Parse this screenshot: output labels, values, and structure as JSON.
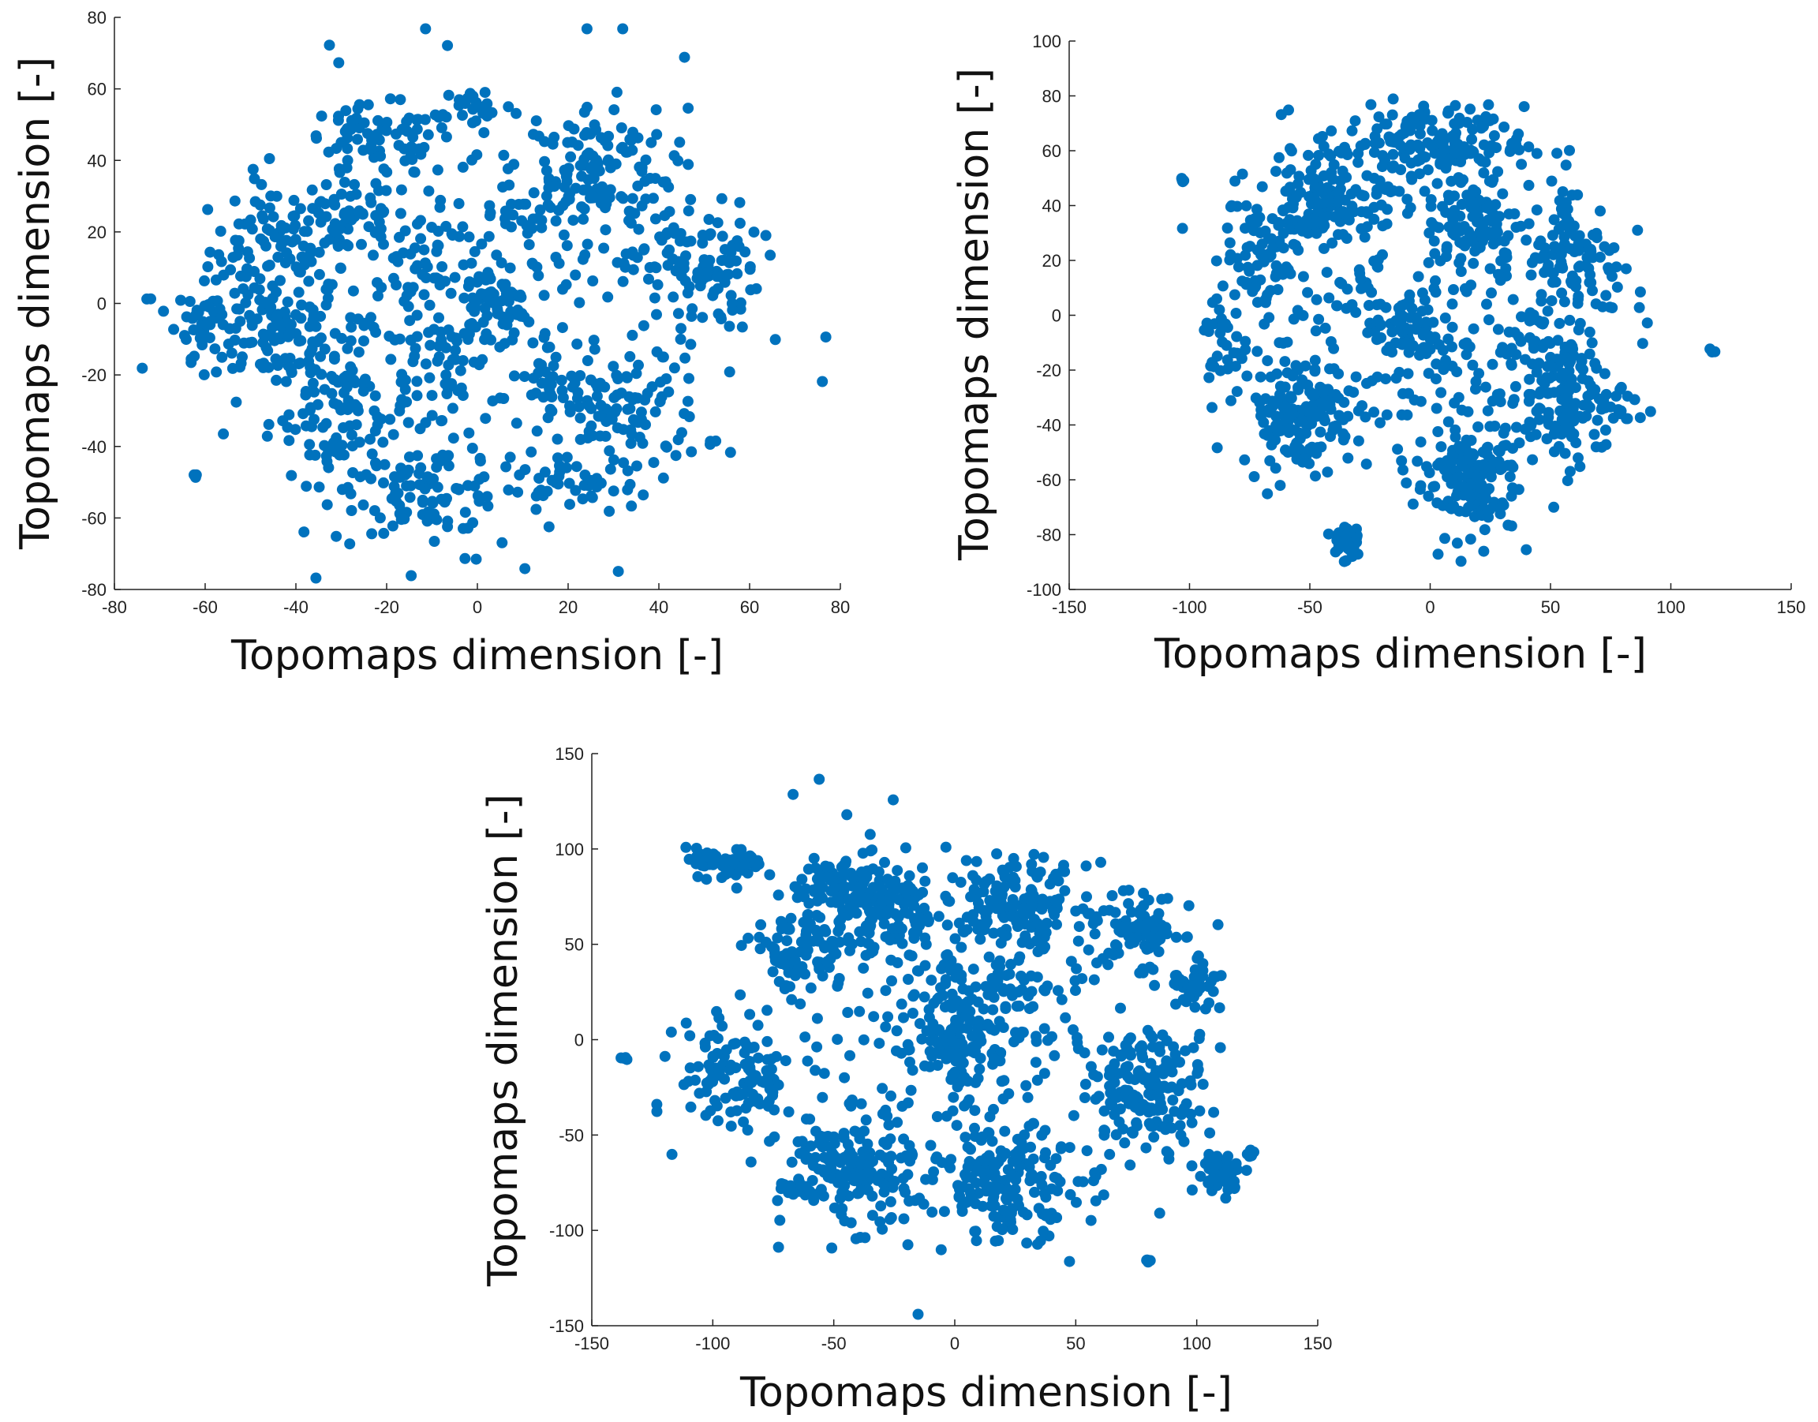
{
  "figure": {
    "panels": 3,
    "marker_color": "#0072BD"
  },
  "chart_data": [
    {
      "type": "scatter",
      "title": "",
      "xlabel": "Topomaps dimension [-]",
      "ylabel": "Topomaps dimension [-]",
      "xlim": [
        -80,
        80
      ],
      "ylim": [
        -80,
        80
      ],
      "xticks": [
        -80,
        -60,
        -40,
        -20,
        0,
        20,
        40,
        60,
        80
      ],
      "yticks": [
        -80,
        -60,
        -40,
        -20,
        0,
        20,
        40,
        60,
        80
      ],
      "grid": false,
      "clusters": [
        {
          "cx": -45,
          "cy": 15,
          "sx": 7,
          "sy": 9,
          "n": 90
        },
        {
          "cx": -45,
          "cy": -8,
          "sx": 8,
          "sy": 8,
          "n": 90
        },
        {
          "cx": -60,
          "cy": -5,
          "sx": 3,
          "sy": 5,
          "n": 35
        },
        {
          "cx": -30,
          "cy": -30,
          "sx": 8,
          "sy": 10,
          "n": 110
        },
        {
          "cx": -28,
          "cy": 25,
          "sx": 6,
          "sy": 8,
          "n": 45
        },
        {
          "cx": -22,
          "cy": 45,
          "sx": 9,
          "sy": 5,
          "n": 70
        },
        {
          "cx": -10,
          "cy": -52,
          "sx": 8,
          "sy": 6,
          "n": 90
        },
        {
          "cx": 3,
          "cy": 0,
          "sx": 5,
          "sy": 5,
          "n": 50
        },
        {
          "cx": -12,
          "cy": 5,
          "sx": 10,
          "sy": 10,
          "n": 40
        },
        {
          "cx": 0,
          "cy": 55,
          "sx": 4,
          "sy": 3,
          "n": 25
        },
        {
          "cx": 25,
          "cy": 38,
          "sx": 9,
          "sy": 9,
          "n": 120
        },
        {
          "cx": 48,
          "cy": 10,
          "sx": 7,
          "sy": 9,
          "n": 110
        },
        {
          "cx": 32,
          "cy": -30,
          "sx": 9,
          "sy": 9,
          "n": 110
        },
        {
          "cx": 15,
          "cy": -20,
          "sx": 4,
          "sy": 5,
          "n": 25
        },
        {
          "cx": 20,
          "cy": -52,
          "sx": 8,
          "sy": 4,
          "n": 40
        },
        {
          "cx": -5,
          "cy": -20,
          "sx": 6,
          "sy": 8,
          "n": 35
        },
        {
          "cx": 10,
          "cy": 20,
          "sx": 8,
          "sy": 8,
          "n": 30
        },
        {
          "cx": 0,
          "cy": 0,
          "sx": 28,
          "sy": 30,
          "n": 200
        },
        {
          "cx": -62,
          "cy": -48,
          "sx": 0.3,
          "sy": 0.3,
          "n": 3
        }
      ]
    },
    {
      "type": "scatter",
      "title": "",
      "xlabel": "Topomaps dimension [-]",
      "ylabel": "Topomaps dimension [-]",
      "xlim": [
        -150,
        150
      ],
      "ylim": [
        -100,
        100
      ],
      "xticks": [
        -150,
        -100,
        -50,
        0,
        50,
        100,
        150
      ],
      "yticks": [
        -100,
        -80,
        -60,
        -40,
        -20,
        0,
        20,
        40,
        60,
        80,
        100
      ],
      "grid": false,
      "clusters": [
        {
          "cx": -45,
          "cy": 40,
          "sx": 12,
          "sy": 7,
          "n": 110
        },
        {
          "cx": -70,
          "cy": 20,
          "sx": 8,
          "sy": 10,
          "n": 70
        },
        {
          "cx": -5,
          "cy": 62,
          "sx": 22,
          "sy": 7,
          "n": 170
        },
        {
          "cx": 18,
          "cy": 35,
          "sx": 10,
          "sy": 8,
          "n": 80
        },
        {
          "cx": 60,
          "cy": 20,
          "sx": 10,
          "sy": 14,
          "n": 110
        },
        {
          "cx": -55,
          "cy": -35,
          "sx": 12,
          "sy": 10,
          "n": 150
        },
        {
          "cx": 55,
          "cy": -30,
          "sx": 13,
          "sy": 12,
          "n": 160
        },
        {
          "cx": 15,
          "cy": -60,
          "sx": 11,
          "sy": 10,
          "n": 150
        },
        {
          "cx": -10,
          "cy": -5,
          "sx": 8,
          "sy": 8,
          "n": 55
        },
        {
          "cx": 0,
          "cy": 5,
          "sx": 35,
          "sy": 30,
          "n": 220
        },
        {
          "cx": -35,
          "cy": -82,
          "sx": 3,
          "sy": 4,
          "n": 40
        },
        {
          "cx": -103,
          "cy": 49,
          "sx": 0.5,
          "sy": 0.5,
          "n": 4
        },
        {
          "cx": 117,
          "cy": -13,
          "sx": 0.5,
          "sy": 0.5,
          "n": 4
        },
        {
          "cx": -80,
          "cy": 40,
          "sx": 1.5,
          "sy": 0.5,
          "n": 4
        },
        {
          "cx": -85,
          "cy": -10,
          "sx": 5,
          "sy": 10,
          "n": 30
        }
      ]
    },
    {
      "type": "scatter",
      "title": "",
      "xlabel": "Topomaps dimension [-]",
      "ylabel": "Topomaps dimension [-]",
      "xlim": [
        -150,
        150
      ],
      "ylim": [
        -150,
        150
      ],
      "xticks": [
        -150,
        -100,
        -50,
        0,
        50,
        100,
        150
      ],
      "yticks": [
        -150,
        -100,
        -50,
        0,
        50,
        100,
        150
      ],
      "grid": false,
      "clusters": [
        {
          "cx": -95,
          "cy": 92,
          "sx": 8,
          "sy": 4,
          "n": 60
        },
        {
          "cx": -50,
          "cy": 82,
          "sx": 8,
          "sy": 7,
          "n": 60
        },
        {
          "cx": -30,
          "cy": 68,
          "sx": 12,
          "sy": 12,
          "n": 140
        },
        {
          "cx": 25,
          "cy": 72,
          "sx": 15,
          "sy": 10,
          "n": 150
        },
        {
          "cx": 78,
          "cy": 58,
          "sx": 8,
          "sy": 9,
          "n": 70
        },
        {
          "cx": -65,
          "cy": 45,
          "sx": 10,
          "sy": 10,
          "n": 90
        },
        {
          "cx": -90,
          "cy": -20,
          "sx": 12,
          "sy": 15,
          "n": 110
        },
        {
          "cx": -45,
          "cy": -70,
          "sx": 14,
          "sy": 14,
          "n": 170
        },
        {
          "cx": 22,
          "cy": -75,
          "sx": 15,
          "sy": 14,
          "n": 170
        },
        {
          "cx": 80,
          "cy": -25,
          "sx": 12,
          "sy": 15,
          "n": 150
        },
        {
          "cx": 100,
          "cy": 30,
          "sx": 5,
          "sy": 10,
          "n": 40
        },
        {
          "cx": 0,
          "cy": -5,
          "sx": 8,
          "sy": 8,
          "n": 70
        },
        {
          "cx": 10,
          "cy": 25,
          "sx": 15,
          "sy": 12,
          "n": 60
        },
        {
          "cx": 0,
          "cy": 0,
          "sx": 45,
          "sy": 45,
          "n": 260
        },
        {
          "cx": 110,
          "cy": -70,
          "sx": 5,
          "sy": 5,
          "n": 50
        },
        {
          "cx": 80,
          "cy": -116,
          "sx": 1,
          "sy": 0.6,
          "n": 5
        },
        {
          "cx": -136,
          "cy": -10,
          "sx": 1,
          "sy": 0.5,
          "n": 5
        },
        {
          "cx": 122,
          "cy": -60,
          "sx": 1.5,
          "sy": 1.5,
          "n": 6
        }
      ]
    }
  ]
}
